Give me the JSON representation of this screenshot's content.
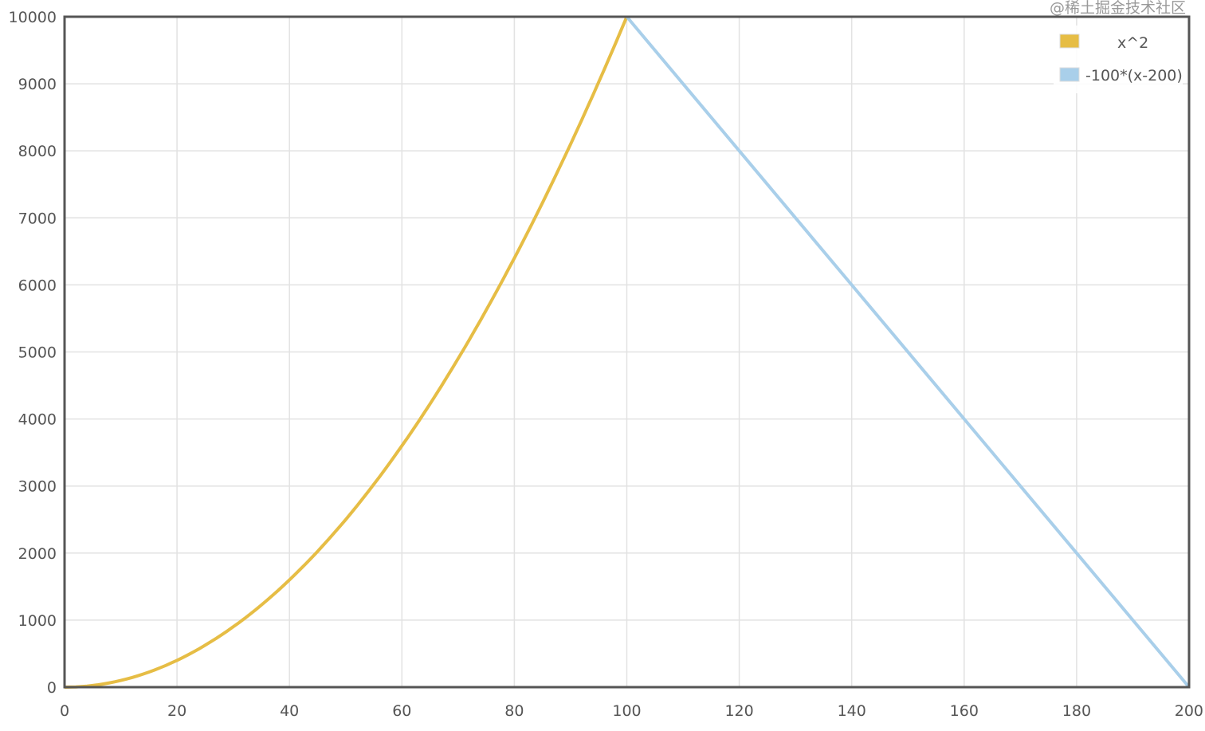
{
  "chart_data": {
    "type": "line",
    "title": "",
    "xlabel": "",
    "ylabel": "",
    "xlim": [
      0,
      200
    ],
    "ylim": [
      0,
      10000
    ],
    "x_ticks": [
      "0",
      "20",
      "40",
      "60",
      "80",
      "100",
      "120",
      "140",
      "160",
      "180",
      "200"
    ],
    "y_ticks": [
      "0",
      "1000",
      "2000",
      "3000",
      "4000",
      "5000",
      "6000",
      "7000",
      "8000",
      "9000",
      "10000"
    ],
    "grid": true,
    "legend_position": "top-right",
    "series": [
      {
        "name": "x^2",
        "color": "#e6bd45",
        "x_range": [
          0,
          100
        ],
        "formula": "x^2",
        "points": [
          [
            0,
            0
          ],
          [
            10,
            100
          ],
          [
            20,
            400
          ],
          [
            30,
            900
          ],
          [
            40,
            1600
          ],
          [
            50,
            2500
          ],
          [
            60,
            3600
          ],
          [
            70,
            4900
          ],
          [
            80,
            6400
          ],
          [
            90,
            8100
          ],
          [
            100,
            10000
          ]
        ]
      },
      {
        "name": "-100*(x-200)",
        "color": "#a9cfea",
        "x_range": [
          100,
          200
        ],
        "formula": "-100*(x-200)",
        "points": [
          [
            100,
            10000
          ],
          [
            120,
            8000
          ],
          [
            140,
            6000
          ],
          [
            160,
            4000
          ],
          [
            180,
            2000
          ],
          [
            200,
            0
          ]
        ]
      }
    ]
  },
  "watermark": "@稀土掘金技术社区"
}
